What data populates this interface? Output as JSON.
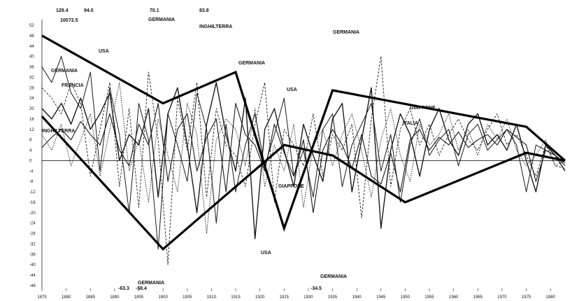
{
  "chart_data": {
    "type": "line",
    "title": "",
    "xlabel": "",
    "ylabel": "",
    "x_ticks": [
      "1875",
      "1880",
      "1885",
      "1890",
      "1895",
      "1900",
      "1905",
      "1910",
      "1915",
      "1920",
      "1925",
      "1930",
      "1935",
      "1940",
      "1945",
      "1950",
      "1955",
      "1960",
      "1965",
      "1970",
      "1975",
      "1980"
    ],
    "y_ticks": [
      "52",
      "48",
      "44",
      "40",
      "36",
      "32",
      "28",
      "24",
      "20",
      "16",
      "12",
      "8",
      "4",
      "0",
      "-4",
      "-8",
      "-12",
      "-16",
      "-20",
      "-24",
      "-28",
      "-32",
      "-36",
      "-40",
      "-44",
      "-48"
    ],
    "ylim": [
      -48,
      52
    ],
    "grid": false,
    "peak_labels": [
      "129.4",
      "100",
      "72.5",
      "94.0",
      "70.1",
      "83.8",
      "-63.3",
      "-58.4",
      "-34.5"
    ],
    "annotations": [
      "USA",
      "GERMANIA",
      "FRANCIA",
      "INGHILTERRA",
      "GERMANIA",
      "INGHILTERRA",
      "GERMANIA",
      "USA",
      "GIAPPONE",
      "USA",
      "GERMANIA",
      "GIAPPONE",
      "ITALIA",
      "GERMANIA",
      "GERMANIA"
    ],
    "envelope_upper": {
      "x": [
        1875,
        1900,
        1915,
        1925,
        1935,
        1975,
        1983
      ],
      "values": [
        48,
        22,
        34,
        -26,
        27,
        13,
        0
      ]
    },
    "envelope_lower": {
      "x": [
        1875,
        1900,
        1925,
        1935,
        1950,
        1975,
        1983
      ],
      "values": [
        17,
        -34,
        6,
        2,
        -16,
        3,
        0
      ]
    },
    "series": [
      {
        "x": [
          1875,
          1877,
          1879,
          1881,
          1883,
          1885,
          1887,
          1889,
          1891,
          1893,
          1895,
          1897,
          1899,
          1901,
          1903,
          1905,
          1907,
          1909,
          1911,
          1913,
          1915,
          1917,
          1919,
          1921,
          1923,
          1925,
          1927,
          1929,
          1931,
          1933,
          1935,
          1937,
          1939,
          1941,
          1943,
          1945,
          1947,
          1949,
          1951,
          1953,
          1955,
          1957,
          1959,
          1961,
          1963,
          1965,
          1967,
          1969,
          1971,
          1973,
          1975,
          1977,
          1979,
          1981,
          1983
        ],
        "values": [
          5,
          9,
          12,
          8,
          15,
          10,
          6,
          18,
          4,
          -2,
          14,
          6,
          22,
          -8,
          12,
          18,
          -4,
          9,
          16,
          -12,
          22,
          10,
          6,
          -4,
          14,
          3,
          -6,
          8,
          -20,
          4,
          12,
          6,
          -3,
          10,
          -6,
          -9,
          3,
          -12,
          8,
          12,
          4,
          9,
          6,
          11,
          5,
          8,
          10,
          6,
          12,
          9,
          6,
          -8,
          4,
          2,
          -1
        ]
      },
      {
        "x": [
          1875,
          1877,
          1879,
          1881,
          1883,
          1885,
          1887,
          1889,
          1891,
          1893,
          1895,
          1897,
          1899,
          1901,
          1903,
          1905,
          1907,
          1909,
          1911,
          1913,
          1915,
          1917,
          1919,
          1921,
          1923,
          1925,
          1927,
          1929,
          1931,
          1933,
          1935,
          1937,
          1939,
          1941,
          1943,
          1945,
          1947,
          1949,
          1951,
          1953,
          1955,
          1957,
          1959,
          1961,
          1963,
          1965,
          1967,
          1969,
          1971,
          1973,
          1975,
          1977,
          1979,
          1981,
          1983
        ],
        "values": [
          28,
          24,
          18,
          30,
          22,
          -6,
          12,
          30,
          -10,
          20,
          -18,
          34,
          8,
          -40,
          24,
          4,
          30,
          -14,
          20,
          6,
          2,
          -10,
          14,
          30,
          -16,
          12,
          6,
          -2,
          18,
          -6,
          10,
          4,
          14,
          -22,
          16,
          40,
          -10,
          12,
          20,
          6,
          14,
          2,
          10,
          16,
          8,
          4,
          12,
          18,
          6,
          10,
          2,
          -6,
          6,
          -2,
          -3
        ]
      },
      {
        "x": [
          1875,
          1877,
          1879,
          1881,
          1883,
          1885,
          1887,
          1889,
          1891,
          1893,
          1895,
          1897,
          1899,
          1901,
          1903,
          1905,
          1907,
          1909,
          1911,
          1913,
          1915,
          1917,
          1919,
          1921,
          1923,
          1925,
          1927,
          1929,
          1931,
          1933,
          1935,
          1937,
          1939,
          1941,
          1943,
          1945,
          1947,
          1949,
          1951,
          1953,
          1955,
          1957,
          1959,
          1961,
          1963,
          1965,
          1967,
          1969,
          1971,
          1973,
          1975,
          1977,
          1979,
          1981,
          1983
        ],
        "values": [
          20,
          16,
          22,
          14,
          24,
          12,
          18,
          26,
          0,
          10,
          6,
          20,
          -14,
          18,
          28,
          6,
          -20,
          14,
          30,
          10,
          -4,
          24,
          -30,
          12,
          20,
          4,
          -10,
          14,
          2,
          -8,
          16,
          22,
          -12,
          8,
          28,
          -26,
          4,
          18,
          10,
          -6,
          12,
          20,
          8,
          2,
          14,
          18,
          6,
          10,
          4,
          14,
          0,
          -12,
          6,
          2,
          -4
        ]
      },
      {
        "x": [
          1875,
          1877,
          1879,
          1881,
          1883,
          1885,
          1887,
          1889,
          1891,
          1893,
          1895,
          1897,
          1899,
          1901,
          1903,
          1905,
          1907,
          1909,
          1911,
          1913,
          1915,
          1917,
          1919,
          1921,
          1923,
          1925,
          1927,
          1929,
          1931,
          1933,
          1935,
          1937,
          1939,
          1941,
          1943,
          1945,
          1947,
          1949,
          1951,
          1953,
          1955,
          1957,
          1959,
          1961,
          1963,
          1965,
          1967,
          1969,
          1971,
          1973,
          1975,
          1977,
          1979,
          1981,
          1983
        ],
        "values": [
          10,
          4,
          14,
          -2,
          8,
          18,
          -6,
          12,
          30,
          -4,
          8,
          -16,
          16,
          2,
          -12,
          22,
          10,
          -28,
          8,
          16,
          12,
          -2,
          20,
          -10,
          6,
          -4,
          14,
          -18,
          6,
          12,
          -2,
          10,
          18,
          4,
          -14,
          8,
          20,
          2,
          -8,
          14,
          6,
          10,
          18,
          4,
          12,
          2,
          14,
          8,
          16,
          4,
          -2,
          2,
          8,
          -2,
          0
        ]
      },
      {
        "x": [
          1875,
          1877,
          1879,
          1881,
          1883,
          1885,
          1887,
          1889,
          1891,
          1893,
          1895,
          1897,
          1899,
          1901,
          1903,
          1905,
          1907,
          1909,
          1911,
          1913,
          1915,
          1917,
          1919,
          1921,
          1923,
          1925,
          1927,
          1929,
          1931,
          1933,
          1935,
          1937,
          1939,
          1941,
          1943,
          1945,
          1947,
          1949,
          1951,
          1953,
          1955,
          1957,
          1959,
          1961,
          1963,
          1965,
          1967,
          1969,
          1971,
          1973,
          1975,
          1977,
          1979,
          1981,
          1983
        ],
        "values": [
          36,
          30,
          40,
          26,
          20,
          34,
          -4,
          28,
          10,
          -20,
          22,
          8,
          -34,
          18,
          6,
          -8,
          26,
          12,
          -24,
          14,
          -12,
          6,
          18,
          -2,
          10,
          24,
          -6,
          4,
          -14,
          12,
          18,
          -10,
          6,
          14,
          22,
          -4,
          10,
          -16,
          6,
          16,
          2,
          8,
          12,
          -2,
          10,
          14,
          4,
          8,
          12,
          6,
          -12,
          6,
          4,
          2,
          -2
        ]
      }
    ]
  }
}
